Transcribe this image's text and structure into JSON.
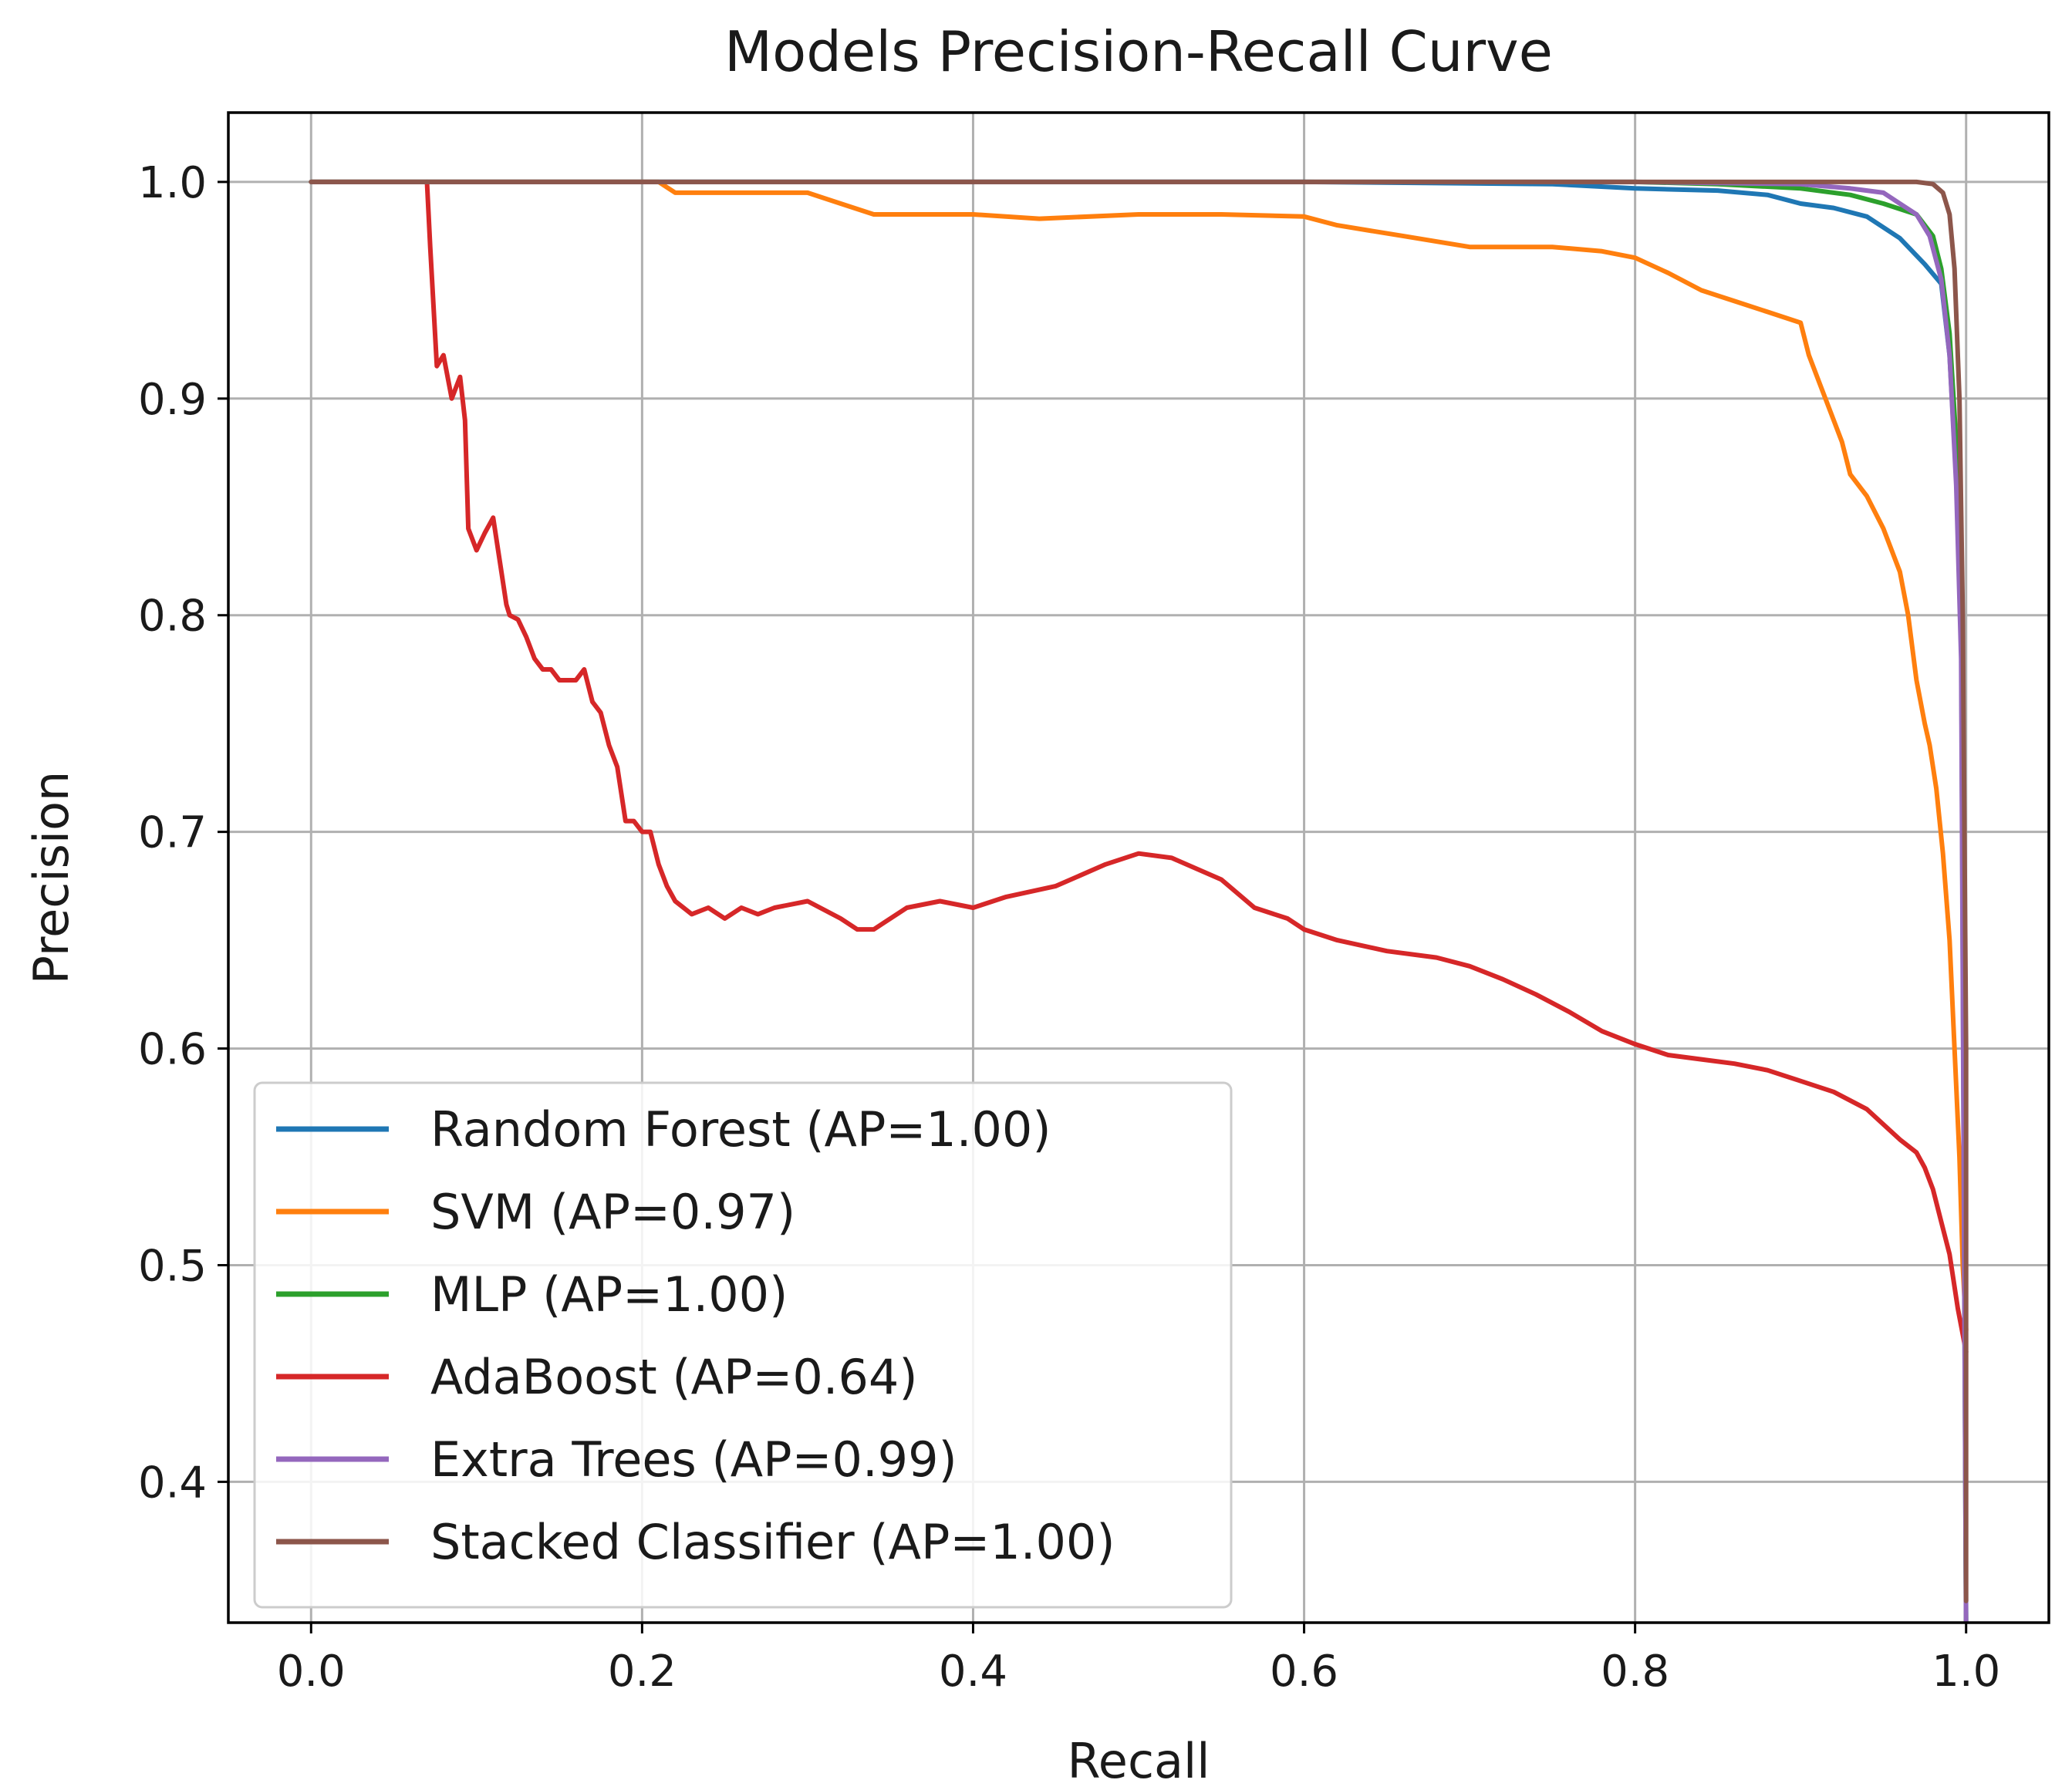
{
  "chart_data": {
    "type": "line",
    "title": "Models Precision-Recall Curve",
    "xlabel": "Recall",
    "ylabel": "Precision",
    "xlim": [
      -0.05,
      1.05
    ],
    "ylim": [
      0.335,
      1.032
    ],
    "grid": true,
    "legend_position": "lower-left",
    "x_ticks": [
      {
        "value": 0.0,
        "label": "0.0"
      },
      {
        "value": 0.2,
        "label": "0.2"
      },
      {
        "value": 0.4,
        "label": "0.4"
      },
      {
        "value": 0.6,
        "label": "0.6"
      },
      {
        "value": 0.8,
        "label": "0.8"
      },
      {
        "value": 1.0,
        "label": "1.0"
      }
    ],
    "y_ticks": [
      {
        "value": 0.4,
        "label": "0.4"
      },
      {
        "value": 0.5,
        "label": "0.5"
      },
      {
        "value": 0.6,
        "label": "0.6"
      },
      {
        "value": 0.7,
        "label": "0.7"
      },
      {
        "value": 0.8,
        "label": "0.8"
      },
      {
        "value": 0.9,
        "label": "0.9"
      },
      {
        "value": 1.0,
        "label": "1.0"
      }
    ],
    "series": [
      {
        "name": "Random Forest",
        "legend_label": "Random Forest (AP=1.00)",
        "color": "#1f77b4",
        "x": [
          0.0,
          0.3,
          0.6,
          0.75,
          0.8,
          0.85,
          0.88,
          0.9,
          0.92,
          0.94,
          0.96,
          0.975,
          0.985,
          0.99,
          0.995,
          0.998,
          1.0
        ],
        "y": [
          1.0,
          1.0,
          1.0,
          0.999,
          0.997,
          0.996,
          0.994,
          0.99,
          0.988,
          0.984,
          0.974,
          0.962,
          0.953,
          0.92,
          0.85,
          0.78,
          0.33
        ]
      },
      {
        "name": "SVM",
        "legend_label": "SVM (AP=0.97)",
        "color": "#ff7f0e",
        "x": [
          0.0,
          0.21,
          0.22,
          0.3,
          0.32,
          0.34,
          0.4,
          0.44,
          0.5,
          0.55,
          0.6,
          0.62,
          0.66,
          0.7,
          0.75,
          0.78,
          0.8,
          0.82,
          0.84,
          0.86,
          0.88,
          0.9,
          0.905,
          0.91,
          0.92,
          0.925,
          0.93,
          0.94,
          0.95,
          0.96,
          0.965,
          0.97,
          0.975,
          0.978,
          0.982,
          0.986,
          0.99,
          0.993,
          0.996,
          0.998,
          1.0
        ],
        "y": [
          1.0,
          1.0,
          0.995,
          0.995,
          0.99,
          0.985,
          0.985,
          0.983,
          0.985,
          0.985,
          0.984,
          0.98,
          0.975,
          0.97,
          0.97,
          0.968,
          0.965,
          0.958,
          0.95,
          0.945,
          0.94,
          0.935,
          0.92,
          0.91,
          0.89,
          0.88,
          0.865,
          0.855,
          0.84,
          0.82,
          0.8,
          0.77,
          0.75,
          0.74,
          0.72,
          0.69,
          0.65,
          0.6,
          0.55,
          0.5,
          0.47
        ]
      },
      {
        "name": "MLP",
        "legend_label": "MLP (AP=1.00)",
        "color": "#2ca02c",
        "x": [
          0.0,
          0.6,
          0.8,
          0.85,
          0.9,
          0.93,
          0.95,
          0.97,
          0.98,
          0.985,
          0.99,
          0.994,
          0.997,
          1.0
        ],
        "y": [
          1.0,
          1.0,
          1.0,
          0.999,
          0.997,
          0.994,
          0.99,
          0.985,
          0.975,
          0.96,
          0.93,
          0.88,
          0.8,
          0.33
        ]
      },
      {
        "name": "AdaBoost",
        "legend_label": "AdaBoost (AP=0.64)",
        "color": "#d62728",
        "x": [
          0.07,
          0.072,
          0.076,
          0.08,
          0.085,
          0.09,
          0.093,
          0.095,
          0.1,
          0.105,
          0.11,
          0.115,
          0.118,
          0.12,
          0.125,
          0.13,
          0.135,
          0.14,
          0.145,
          0.15,
          0.155,
          0.16,
          0.165,
          0.17,
          0.175,
          0.18,
          0.185,
          0.19,
          0.195,
          0.2,
          0.205,
          0.21,
          0.215,
          0.22,
          0.23,
          0.24,
          0.25,
          0.26,
          0.27,
          0.28,
          0.3,
          0.32,
          0.33,
          0.34,
          0.35,
          0.36,
          0.38,
          0.4,
          0.42,
          0.45,
          0.48,
          0.5,
          0.52,
          0.55,
          0.57,
          0.59,
          0.6,
          0.62,
          0.65,
          0.68,
          0.7,
          0.72,
          0.74,
          0.76,
          0.78,
          0.8,
          0.82,
          0.84,
          0.86,
          0.88,
          0.9,
          0.92,
          0.94,
          0.95,
          0.96,
          0.97,
          0.975,
          0.98,
          0.985,
          0.99,
          0.995,
          1.0
        ],
        "y": [
          1.0,
          0.97,
          0.915,
          0.92,
          0.9,
          0.91,
          0.89,
          0.84,
          0.83,
          0.838,
          0.845,
          0.82,
          0.805,
          0.8,
          0.798,
          0.79,
          0.78,
          0.775,
          0.775,
          0.77,
          0.77,
          0.77,
          0.775,
          0.76,
          0.755,
          0.74,
          0.73,
          0.705,
          0.705,
          0.7,
          0.7,
          0.685,
          0.675,
          0.668,
          0.662,
          0.665,
          0.66,
          0.665,
          0.662,
          0.665,
          0.668,
          0.66,
          0.655,
          0.655,
          0.66,
          0.665,
          0.668,
          0.665,
          0.67,
          0.675,
          0.685,
          0.69,
          0.688,
          0.678,
          0.665,
          0.66,
          0.655,
          0.65,
          0.645,
          0.642,
          0.638,
          0.632,
          0.625,
          0.617,
          0.608,
          0.602,
          0.597,
          0.595,
          0.593,
          0.59,
          0.585,
          0.58,
          0.572,
          0.565,
          0.558,
          0.552,
          0.545,
          0.535,
          0.52,
          0.505,
          0.48,
          0.46
        ]
      },
      {
        "name": "Extra Trees",
        "legend_label": "Extra Trees (AP=0.99)",
        "color": "#9467bd",
        "x": [
          0.0,
          0.6,
          0.8,
          0.9,
          0.93,
          0.95,
          0.96,
          0.97,
          0.978,
          0.985,
          0.99,
          0.994,
          0.997,
          1.0
        ],
        "y": [
          1.0,
          1.0,
          1.0,
          0.999,
          0.997,
          0.995,
          0.99,
          0.985,
          0.975,
          0.955,
          0.92,
          0.86,
          0.78,
          0.33
        ]
      },
      {
        "name": "Stacked Classifier",
        "legend_label": "Stacked Classifier (AP=1.00)",
        "color": "#8c564b",
        "x": [
          0.0,
          0.9,
          0.95,
          0.97,
          0.98,
          0.986,
          0.99,
          0.993,
          0.996,
          0.998,
          1.0,
          1.0
        ],
        "y": [
          1.0,
          1.0,
          1.0,
          1.0,
          0.999,
          0.995,
          0.985,
          0.96,
          0.9,
          0.8,
          0.6,
          0.345
        ]
      }
    ]
  }
}
